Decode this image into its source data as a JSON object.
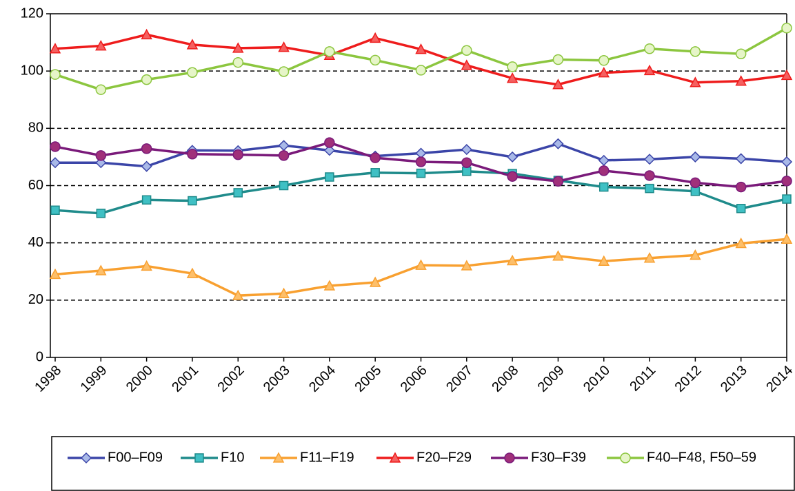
{
  "chart_data": {
    "type": "line",
    "categories": [
      "1998",
      "1999",
      "2000",
      "2001",
      "2002",
      "2003",
      "2004",
      "2005",
      "2006",
      "2007",
      "2008",
      "2009",
      "2010",
      "2011",
      "2012",
      "2013",
      "2014"
    ],
    "ylim": [
      0,
      120
    ],
    "yticks": [
      0,
      20,
      40,
      60,
      80,
      100,
      120
    ],
    "grid": true,
    "legend": "bottom",
    "series": [
      {
        "name": "F00–F09",
        "color": "#3b45a8",
        "marker": "diamond",
        "marker_fill": "#a9b9e8",
        "values": [
          68,
          68,
          66.7,
          72.3,
          72.2,
          74,
          72.3,
          70.3,
          71.3,
          72.6,
          70,
          74.6,
          68.8,
          69.2,
          70,
          69.4,
          68.3
        ]
      },
      {
        "name": "F10",
        "color": "#1f8b8b",
        "marker": "square",
        "marker_fill": "#3fc0c4",
        "values": [
          51.4,
          50.3,
          55,
          54.7,
          57.5,
          60,
          63,
          64.5,
          64.3,
          65,
          64.2,
          61.8,
          59.5,
          59,
          58,
          52,
          55.3
        ]
      },
      {
        "name": "F11–F19",
        "color": "#f8a030",
        "marker": "triangle",
        "marker_fill": "#fdbf6a",
        "values": [
          29,
          30.3,
          31.9,
          29.3,
          21.6,
          22.3,
          25,
          26.2,
          32.2,
          32,
          33.8,
          35.4,
          33.6,
          34.7,
          35.7,
          39.8,
          41.3
        ]
      },
      {
        "name": "F20–F29",
        "color": "#ee1c1c",
        "marker": "triangle",
        "marker_fill": "#f56060",
        "values": [
          107.8,
          108.8,
          112.7,
          109.2,
          108,
          108.3,
          105.5,
          111.5,
          107.6,
          102,
          97.5,
          95.3,
          99.4,
          100.2,
          96,
          96.5,
          98.5
        ]
      },
      {
        "name": "F30–F39",
        "color": "#7a1a7a",
        "marker": "circle",
        "marker_fill": "#a0307a",
        "values": [
          73.6,
          70.5,
          72.9,
          71,
          70.8,
          70.5,
          75,
          69.7,
          68.3,
          68,
          63.2,
          61.5,
          65.2,
          63.5,
          61,
          59.5,
          61.6
        ]
      },
      {
        "name": "F40–F48, F50–59",
        "color": "#8cc63f",
        "marker": "circle",
        "marker_fill": "#e6f5c8",
        "values": [
          98.8,
          93.5,
          97,
          99.5,
          103,
          99.8,
          106.8,
          103.8,
          100.3,
          107.2,
          101.5,
          104,
          103.7,
          107.8,
          106.8,
          106,
          115
        ]
      }
    ]
  }
}
